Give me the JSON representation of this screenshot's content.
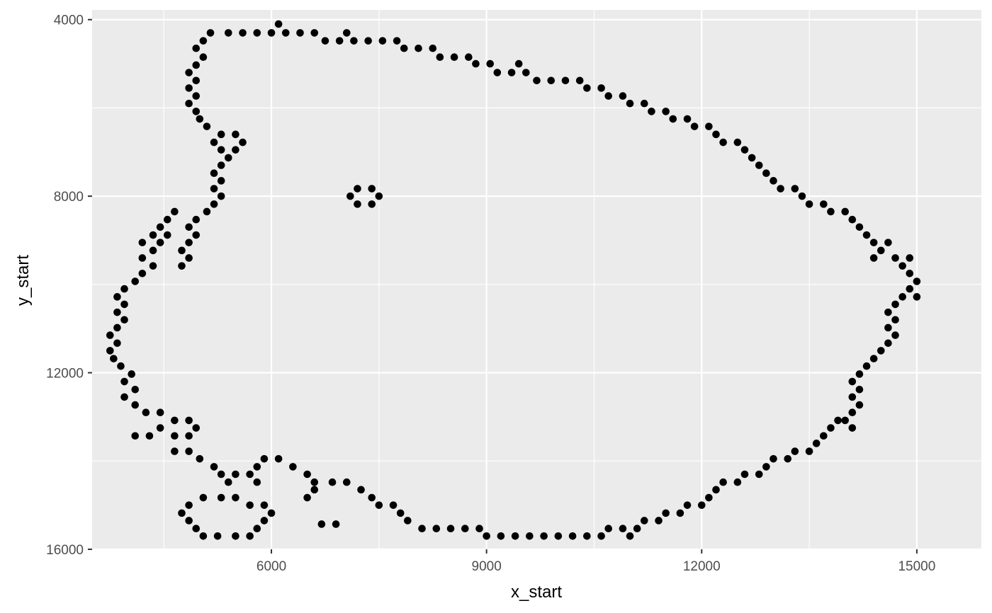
{
  "chart_data": {
    "type": "scatter",
    "xlabel": "x_start",
    "ylabel": "y_start",
    "xlim": [
      3500,
      15900
    ],
    "ylim": [
      16000,
      3780
    ],
    "y_reversed": true,
    "x_ticks": [
      6000,
      9000,
      12000,
      15000
    ],
    "x_tick_labels": [
      "6000",
      "9000",
      "12000",
      "15000"
    ],
    "y_ticks": [
      4000,
      8000,
      12000,
      16000
    ],
    "y_tick_labels": [
      "4000",
      "8000",
      "12000",
      "16000"
    ],
    "grid": true,
    "colors": {
      "panel": "#ebebeb",
      "grid": "#ffffff",
      "point": "#000000"
    },
    "points": [
      [
        6100,
        4100
      ],
      [
        6200,
        4300
      ],
      [
        6400,
        4300
      ],
      [
        6600,
        4300
      ],
      [
        6750,
        4480
      ],
      [
        6950,
        4480
      ],
      [
        7050,
        4300
      ],
      [
        7150,
        4480
      ],
      [
        7350,
        4480
      ],
      [
        7550,
        4480
      ],
      [
        7750,
        4480
      ],
      [
        7850,
        4650
      ],
      [
        8050,
        4650
      ],
      [
        8250,
        4650
      ],
      [
        8350,
        4850
      ],
      [
        8550,
        4850
      ],
      [
        8750,
        4850
      ],
      [
        8850,
        5000
      ],
      [
        9050,
        5000
      ],
      [
        9150,
        5200
      ],
      [
        9350,
        5200
      ],
      [
        9450,
        5000
      ],
      [
        9550,
        5200
      ],
      [
        9700,
        5380
      ],
      [
        9900,
        5380
      ],
      [
        10100,
        5380
      ],
      [
        10300,
        5380
      ],
      [
        10400,
        5550
      ],
      [
        10600,
        5550
      ],
      [
        10700,
        5730
      ],
      [
        10900,
        5730
      ],
      [
        11000,
        5900
      ],
      [
        11200,
        5900
      ],
      [
        11300,
        6080
      ],
      [
        11500,
        6080
      ],
      [
        11600,
        6250
      ],
      [
        11800,
        6250
      ],
      [
        11900,
        6420
      ],
      [
        12100,
        6420
      ],
      [
        12200,
        6600
      ],
      [
        12300,
        6780
      ],
      [
        12500,
        6780
      ],
      [
        12600,
        6950
      ],
      [
        12700,
        7130
      ],
      [
        12800,
        7300
      ],
      [
        12900,
        7480
      ],
      [
        13000,
        7650
      ],
      [
        13100,
        7830
      ],
      [
        13300,
        7830
      ],
      [
        13400,
        8000
      ],
      [
        13500,
        8180
      ],
      [
        13700,
        8180
      ],
      [
        13800,
        8350
      ],
      [
        14000,
        8350
      ],
      [
        14100,
        8530
      ],
      [
        14200,
        8700
      ],
      [
        14300,
        8880
      ],
      [
        14400,
        9050
      ],
      [
        14500,
        9230
      ],
      [
        14600,
        9050
      ],
      [
        14400,
        9400
      ],
      [
        14700,
        9400
      ],
      [
        14800,
        9580
      ],
      [
        14900,
        9400
      ],
      [
        14900,
        9750
      ],
      [
        15000,
        9930
      ],
      [
        14900,
        10100
      ],
      [
        15000,
        10280
      ],
      [
        14800,
        10280
      ],
      [
        14700,
        10450
      ],
      [
        14600,
        10630
      ],
      [
        14700,
        10800
      ],
      [
        14600,
        10980
      ],
      [
        14700,
        11150
      ],
      [
        14600,
        11330
      ],
      [
        14500,
        11500
      ],
      [
        14400,
        11680
      ],
      [
        14300,
        11850
      ],
      [
        14200,
        12030
      ],
      [
        14100,
        12200
      ],
      [
        14200,
        12380
      ],
      [
        14100,
        12550
      ],
      [
        14200,
        12730
      ],
      [
        14100,
        12900
      ],
      [
        14000,
        13080
      ],
      [
        14100,
        13250
      ],
      [
        13900,
        13080
      ],
      [
        13800,
        13250
      ],
      [
        13700,
        13430
      ],
      [
        13600,
        13600
      ],
      [
        13500,
        13780
      ],
      [
        13300,
        13780
      ],
      [
        13200,
        13950
      ],
      [
        13000,
        13950
      ],
      [
        12900,
        14130
      ],
      [
        12800,
        14300
      ],
      [
        12600,
        14300
      ],
      [
        12500,
        14480
      ],
      [
        12300,
        14480
      ],
      [
        12200,
        14650
      ],
      [
        12100,
        14830
      ],
      [
        12000,
        15000
      ],
      [
        11800,
        15000
      ],
      [
        11700,
        15180
      ],
      [
        11500,
        15180
      ],
      [
        11400,
        15350
      ],
      [
        11200,
        15350
      ],
      [
        11100,
        15530
      ],
      [
        11000,
        15700
      ],
      [
        10900,
        15530
      ],
      [
        10700,
        15530
      ],
      [
        10600,
        15700
      ],
      [
        10400,
        15700
      ],
      [
        10200,
        15700
      ],
      [
        10000,
        15700
      ],
      [
        9800,
        15700
      ],
      [
        9600,
        15700
      ],
      [
        9400,
        15700
      ],
      [
        9200,
        15700
      ],
      [
        9000,
        15700
      ],
      [
        8900,
        15530
      ],
      [
        8700,
        15530
      ],
      [
        8500,
        15530
      ],
      [
        8300,
        15530
      ],
      [
        8100,
        15530
      ],
      [
        7900,
        15350
      ],
      [
        7800,
        15180
      ],
      [
        7700,
        15000
      ],
      [
        7500,
        15000
      ],
      [
        7400,
        14830
      ],
      [
        7250,
        14650
      ],
      [
        7050,
        14480
      ],
      [
        6850,
        14480
      ],
      [
        6600,
        14480
      ],
      [
        6500,
        14300
      ],
      [
        6600,
        14650
      ],
      [
        6500,
        14830
      ],
      [
        6900,
        15430
      ],
      [
        6700,
        15430
      ],
      [
        6300,
        14130
      ],
      [
        6100,
        13950
      ],
      [
        5900,
        13950
      ],
      [
        5800,
        14130
      ],
      [
        5800,
        14480
      ],
      [
        5700,
        14300
      ],
      [
        5500,
        14300
      ],
      [
        5400,
        14480
      ],
      [
        5300,
        14300
      ],
      [
        5200,
        14130
      ],
      [
        5000,
        13950
      ],
      [
        4850,
        13780
      ],
      [
        4650,
        13780
      ],
      [
        4850,
        13430
      ],
      [
        4650,
        13430
      ],
      [
        4450,
        13250
      ],
      [
        4300,
        13430
      ],
      [
        4100,
        13430
      ],
      [
        4950,
        13250
      ],
      [
        4850,
        13080
      ],
      [
        4650,
        13080
      ],
      [
        4450,
        12900
      ],
      [
        4250,
        12900
      ],
      [
        4100,
        12730
      ],
      [
        3950,
        12550
      ],
      [
        4100,
        12380
      ],
      [
        3950,
        12200
      ],
      [
        4050,
        12030
      ],
      [
        3900,
        11850
      ],
      [
        3800,
        11680
      ],
      [
        3750,
        11500
      ],
      [
        3850,
        11330
      ],
      [
        3750,
        11150
      ],
      [
        3850,
        10980
      ],
      [
        3950,
        10800
      ],
      [
        3850,
        10630
      ],
      [
        3950,
        10450
      ],
      [
        3850,
        10280
      ],
      [
        3950,
        10100
      ],
      [
        4100,
        9930
      ],
      [
        4200,
        9750
      ],
      [
        4350,
        9580
      ],
      [
        4200,
        9400
      ],
      [
        4350,
        9230
      ],
      [
        4200,
        9050
      ],
      [
        4350,
        8880
      ],
      [
        4450,
        9050
      ],
      [
        4550,
        8880
      ],
      [
        4450,
        8700
      ],
      [
        4550,
        8530
      ],
      [
        4650,
        8350
      ],
      [
        4750,
        9230
      ],
      [
        4850,
        9400
      ],
      [
        4750,
        9580
      ],
      [
        4850,
        9050
      ],
      [
        4950,
        8880
      ],
      [
        4850,
        8700
      ],
      [
        4950,
        8530
      ],
      [
        5100,
        8350
      ],
      [
        5200,
        8180
      ],
      [
        5300,
        8000
      ],
      [
        5200,
        7830
      ],
      [
        5300,
        7650
      ],
      [
        5200,
        7480
      ],
      [
        5300,
        7300
      ],
      [
        5400,
        7130
      ],
      [
        5500,
        6950
      ],
      [
        5600,
        6780
      ],
      [
        5500,
        6600
      ],
      [
        5300,
        6600
      ],
      [
        5200,
        6780
      ],
      [
        5300,
        6950
      ],
      [
        5100,
        6420
      ],
      [
        5000,
        6250
      ],
      [
        4950,
        6080
      ],
      [
        4850,
        5900
      ],
      [
        4950,
        5730
      ],
      [
        4850,
        5550
      ],
      [
        4950,
        5380
      ],
      [
        4850,
        5200
      ],
      [
        4950,
        5030
      ],
      [
        5050,
        4850
      ],
      [
        4950,
        4650
      ],
      [
        5050,
        4480
      ],
      [
        5150,
        4300
      ],
      [
        5400,
        4300
      ],
      [
        5600,
        4300
      ],
      [
        5800,
        4300
      ],
      [
        6000,
        4300
      ],
      [
        7200,
        7830
      ],
      [
        7400,
        7830
      ],
      [
        7100,
        8000
      ],
      [
        7500,
        8000
      ],
      [
        7200,
        8180
      ],
      [
        7400,
        8180
      ],
      [
        4750,
        15180
      ],
      [
        4850,
        15000
      ],
      [
        5050,
        14830
      ],
      [
        5300,
        14830
      ],
      [
        5500,
        14830
      ],
      [
        5700,
        15000
      ],
      [
        5900,
        15000
      ],
      [
        6000,
        15180
      ],
      [
        5900,
        15350
      ],
      [
        5800,
        15530
      ],
      [
        5700,
        15700
      ],
      [
        5500,
        15700
      ],
      [
        5250,
        15700
      ],
      [
        5050,
        15700
      ],
      [
        4950,
        15530
      ],
      [
        4850,
        15350
      ]
    ]
  }
}
